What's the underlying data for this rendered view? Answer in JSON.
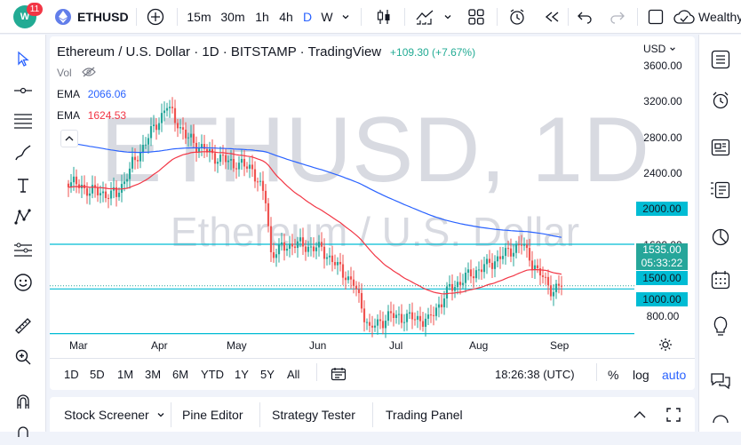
{
  "topbar": {
    "notification_count": "11",
    "symbol": "ETHUSD",
    "intervals": [
      "15m",
      "30m",
      "1h",
      "4h",
      "D",
      "W"
    ],
    "active_interval": "D",
    "wealthy_label": "Wealthy"
  },
  "legend": {
    "title": "Ethereum / U.S. Dollar · 1D · BITSTAMP · TradingView",
    "change": "+109.30 (+7.67%)",
    "vol_label": "Vol",
    "ema1_label": "EMA",
    "ema1_value": "2066.06",
    "ema2_label": "EMA",
    "ema2_value": "1624.53"
  },
  "watermark": {
    "big": "ETHUSD, 1D",
    "small": "Ethereum / U.S. Dollar"
  },
  "price_axis": {
    "currency": "USD",
    "labels": [
      "3600.00",
      "3200.00",
      "2800.00",
      "2400.00",
      "1600.00",
      "800.00"
    ],
    "level_tags": [
      "2000.00",
      "1500.00",
      "1000.00"
    ],
    "current_price": "1535.00",
    "countdown": "05:33:22"
  },
  "time_axis": {
    "months": [
      "Mar",
      "Apr",
      "May",
      "Jun",
      "Jul",
      "Aug",
      "Sep"
    ]
  },
  "range_bar": {
    "ranges": [
      "1D",
      "5D",
      "1M",
      "3M",
      "6M",
      "YTD",
      "1Y",
      "5Y",
      "All"
    ],
    "time": "18:26:38 (UTC)",
    "percent_label": "%",
    "log_label": "log",
    "auto_label": "auto"
  },
  "bottom_tabs": [
    "Stock Screener",
    "Pine Editor",
    "Strategy Tester",
    "Trading Panel"
  ],
  "colors": {
    "up": "#26a69a",
    "down": "#ef5350",
    "ema_long": "#2962ff",
    "ema_short": "#f23645",
    "level": "#00bcd4",
    "accent": "#2962ff"
  },
  "chart_data": {
    "type": "candlestick",
    "symbol": "ETHUSD",
    "timeframe": "1D",
    "ylim": [
      700,
      3750
    ],
    "horizontal_levels": [
      2000,
      1500,
      1000
    ],
    "price_anchors": [
      {
        "date": "Feb 25",
        "price": 2700
      },
      {
        "date": "Mar 5",
        "price": 2600
      },
      {
        "date": "Mar 15",
        "price": 2550
      },
      {
        "date": "Mar 25",
        "price": 3100
      },
      {
        "date": "Apr 3",
        "price": 3550
      },
      {
        "date": "Apr 10",
        "price": 3200
      },
      {
        "date": "Apr 20",
        "price": 3000
      },
      {
        "date": "Apr 28",
        "price": 2900
      },
      {
        "date": "May 5",
        "price": 2850
      },
      {
        "date": "May 10",
        "price": 2500
      },
      {
        "date": "May 12",
        "price": 1900
      },
      {
        "date": "May 20",
        "price": 2000
      },
      {
        "date": "May 31",
        "price": 1950
      },
      {
        "date": "Jun 12",
        "price": 1550
      },
      {
        "date": "Jun 18",
        "price": 1050
      },
      {
        "date": "Jun 25",
        "price": 1200
      },
      {
        "date": "Jul 10",
        "price": 1150
      },
      {
        "date": "Jul 18",
        "price": 1500
      },
      {
        "date": "Jul 28",
        "price": 1700
      },
      {
        "date": "Aug 14",
        "price": 2000
      },
      {
        "date": "Aug 20",
        "price": 1700
      },
      {
        "date": "Aug 26",
        "price": 1480
      },
      {
        "date": "Aug 29",
        "price": 1535
      }
    ],
    "ema_long_value": 2066.06,
    "ema_short_value": 1624.53,
    "last_price": 1535.0
  }
}
